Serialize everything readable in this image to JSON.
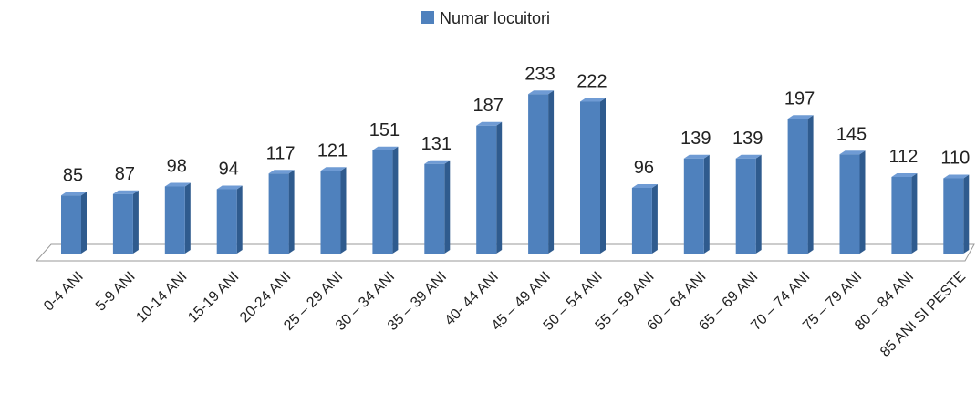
{
  "chart_data": {
    "type": "bar3d",
    "legend": {
      "position": "top"
    },
    "series": [
      {
        "name": "Numar locuitori",
        "color": "#4f81bd",
        "values": [
          85,
          87,
          98,
          94,
          117,
          121,
          151,
          131,
          187,
          233,
          222,
          96,
          139,
          139,
          197,
          145,
          112,
          110
        ]
      }
    ],
    "categories": [
      "0-4 ANI",
      "5-9 ANI",
      "10-14 ANI",
      "15-19 ANI",
      "20-24 ANI",
      "25 – 29 ANI",
      "30 – 34 ANI",
      "35 – 39 ANI",
      "40- 44 ANI",
      "45 – 49 ANI",
      "50 – 54 ANI",
      "55 – 59 ANI",
      "60 – 64 ANI",
      "65 – 69 ANI",
      "70 – 74 ANI",
      "75 – 79 ANI",
      "80 – 84 ANI",
      "85 ANI SI PESTE"
    ]
  }
}
